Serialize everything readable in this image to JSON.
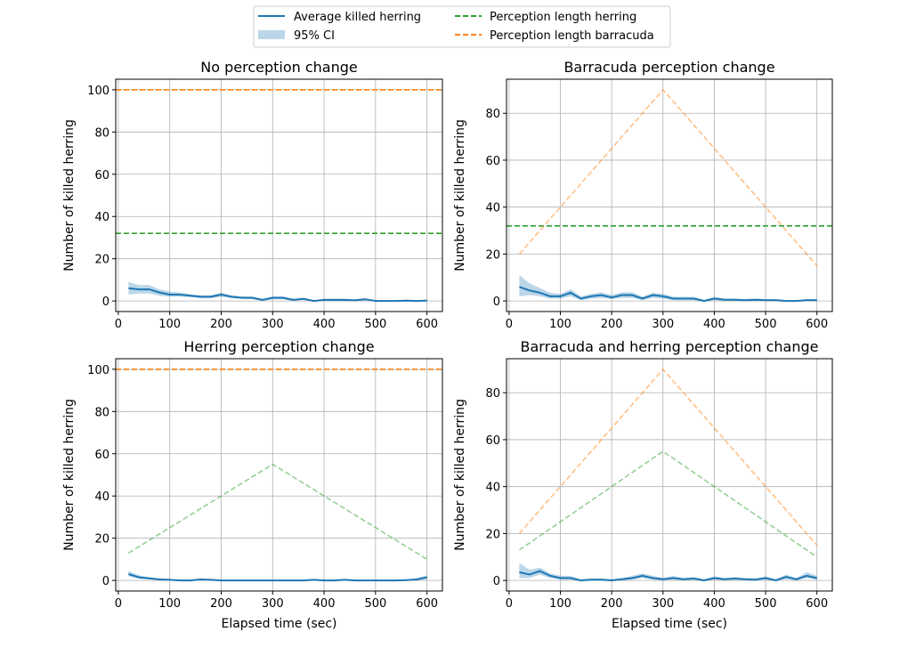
{
  "legend": {
    "items": [
      {
        "label": "Average killed herring",
        "kind": "line",
        "color": "#1f77b4"
      },
      {
        "label": "95% CI",
        "kind": "patch",
        "color": "#1f77b4"
      },
      {
        "label": "Perception length herring",
        "kind": "dashed",
        "color": "#2ca02c"
      },
      {
        "label": "Perception length barracuda",
        "kind": "dashed",
        "color": "#ff7f0e"
      }
    ]
  },
  "chart_data": [
    {
      "type": "line",
      "title": "No perception change",
      "xlabel": "",
      "ylabel": "Number of killed herring",
      "xlim": [
        -5,
        630
      ],
      "ylim": [
        -5,
        105
      ],
      "xticks": [
        0,
        100,
        200,
        300,
        400,
        500,
        600
      ],
      "yticks": [
        0,
        20,
        40,
        60,
        80,
        100
      ],
      "grid": true,
      "x": [
        20,
        40,
        60,
        80,
        100,
        120,
        140,
        160,
        180,
        200,
        220,
        240,
        260,
        280,
        300,
        320,
        340,
        360,
        380,
        400,
        420,
        440,
        460,
        480,
        500,
        520,
        540,
        560,
        580,
        600
      ],
      "series": [
        {
          "name": "Average killed herring",
          "values": [
            6,
            5.5,
            5.5,
            4,
            3,
            3,
            2.5,
            2,
            2,
            3,
            2,
            1.5,
            1.5,
            0.5,
            1.5,
            1.5,
            0.5,
            1,
            0,
            0.5,
            0.5,
            0.5,
            0.3,
            0.8,
            0,
            0,
            0,
            0.2,
            0,
            0.2
          ],
          "ci_low": [
            3,
            3.5,
            3.5,
            2.5,
            2,
            2,
            1.8,
            1.3,
            1.3,
            2,
            1.3,
            1,
            1,
            0,
            0.8,
            0.8,
            0,
            0.5,
            0,
            0,
            0,
            0,
            0,
            0.3,
            0,
            0,
            0,
            0,
            0,
            0
          ],
          "ci_high": [
            9,
            7.5,
            7.5,
            5.5,
            4.5,
            4,
            3.2,
            2.7,
            2.7,
            4,
            2.7,
            2.2,
            2.2,
            1,
            2.2,
            2.2,
            1,
            1.5,
            0.3,
            1,
            1,
            1,
            0.8,
            1.3,
            0.3,
            0.3,
            0.3,
            0.5,
            0.3,
            0.5
          ]
        },
        {
          "name": "Perception length herring",
          "x": [
            -5,
            630
          ],
          "values": [
            32,
            32
          ],
          "style": "dashed",
          "alpha": 1
        },
        {
          "name": "Perception length barracuda",
          "x": [
            -5,
            630
          ],
          "values": [
            100,
            100
          ],
          "style": "dashed",
          "alpha": 1
        }
      ]
    },
    {
      "type": "line",
      "title": "Barracuda perception change",
      "xlabel": "",
      "ylabel": "Number of killed herring",
      "xlim": [
        -5,
        630
      ],
      "ylim": [
        -4.5,
        94.5
      ],
      "xticks": [
        0,
        100,
        200,
        300,
        400,
        500,
        600
      ],
      "yticks": [
        0,
        20,
        40,
        60,
        80
      ],
      "grid": true,
      "x": [
        20,
        40,
        60,
        80,
        100,
        120,
        140,
        160,
        180,
        200,
        220,
        240,
        260,
        280,
        300,
        320,
        340,
        360,
        380,
        400,
        420,
        440,
        460,
        480,
        500,
        520,
        540,
        560,
        580,
        600
      ],
      "series": [
        {
          "name": "Average killed herring",
          "values": [
            6,
            4.5,
            3.5,
            2,
            2,
            3.5,
            1,
            2,
            2.5,
            1.5,
            2.5,
            2.5,
            1,
            2.5,
            2,
            1,
            1,
            1,
            0,
            1,
            0.5,
            0.5,
            0.3,
            0.5,
            0.3,
            0.3,
            0,
            0,
            0.3,
            0.3
          ],
          "ci_low": [
            2,
            2.5,
            2,
            1,
            1,
            2,
            0.3,
            1,
            1.3,
            0.8,
            1.3,
            1.3,
            0.3,
            1.3,
            1,
            0.3,
            0.3,
            0.3,
            0,
            0.3,
            0,
            0,
            0,
            0,
            0,
            0,
            0,
            0,
            0,
            0
          ],
          "ci_high": [
            11,
            7.5,
            5.5,
            3.5,
            3,
            5,
            2,
            3,
            3.7,
            2.5,
            3.7,
            3.7,
            1.8,
            3.5,
            3,
            1.8,
            1.8,
            1.8,
            0.5,
            1.8,
            1,
            1,
            0.8,
            1,
            0.8,
            0.8,
            0.3,
            0.3,
            0.8,
            0.8
          ]
        },
        {
          "name": "Perception length herring",
          "x": [
            -5,
            630
          ],
          "values": [
            32,
            32
          ],
          "style": "dashed",
          "alpha": 1
        },
        {
          "name": "Perception length barracuda",
          "x": [
            20,
            300,
            600
          ],
          "values": [
            20,
            90,
            15
          ],
          "style": "dashed",
          "alpha": 0.5
        }
      ]
    },
    {
      "type": "line",
      "title": "Herring perception change",
      "xlabel": "Elapsed time (sec)",
      "ylabel": "Number of killed herring",
      "xlim": [
        -5,
        630
      ],
      "ylim": [
        -5,
        105
      ],
      "xticks": [
        0,
        100,
        200,
        300,
        400,
        500,
        600
      ],
      "yticks": [
        0,
        20,
        40,
        60,
        80,
        100
      ],
      "grid": true,
      "x": [
        20,
        40,
        60,
        80,
        100,
        120,
        140,
        160,
        180,
        200,
        220,
        240,
        260,
        280,
        300,
        320,
        340,
        360,
        380,
        400,
        420,
        440,
        460,
        480,
        500,
        520,
        540,
        560,
        580,
        600
      ],
      "series": [
        {
          "name": "Average killed herring",
          "values": [
            3,
            1.5,
            1,
            0.5,
            0.3,
            0,
            0,
            0.5,
            0.3,
            0,
            0,
            0,
            0,
            0,
            0,
            0,
            0,
            0,
            0.3,
            0,
            0,
            0.3,
            0,
            0,
            0,
            0,
            0,
            0.2,
            0.5,
            1.5
          ],
          "ci_low": [
            2,
            0.8,
            0.5,
            0.2,
            0,
            0,
            0,
            0.2,
            0,
            0,
            0,
            0,
            0,
            0,
            0,
            0,
            0,
            0,
            0,
            0,
            0,
            0,
            0,
            0,
            0,
            0,
            0,
            0,
            0.2,
            0.5
          ],
          "ci_high": [
            4.5,
            2.5,
            1.5,
            1,
            0.6,
            0.3,
            0.3,
            1,
            0.6,
            0.3,
            0.3,
            0.3,
            0.3,
            0.3,
            0.3,
            0.3,
            0.3,
            0.3,
            0.6,
            0.3,
            0.3,
            0.6,
            0.3,
            0.3,
            0.3,
            0.3,
            0.3,
            0.5,
            1,
            2.5
          ]
        },
        {
          "name": "Perception length herring",
          "x": [
            20,
            300,
            600
          ],
          "values": [
            13,
            55,
            10
          ],
          "style": "dashed",
          "alpha": 0.5
        },
        {
          "name": "Perception length barracuda",
          "x": [
            -5,
            630
          ],
          "values": [
            100,
            100
          ],
          "style": "dashed",
          "alpha": 1
        }
      ]
    },
    {
      "type": "line",
      "title": "Barracuda and herring perception change",
      "xlabel": "Elapsed time (sec)",
      "ylabel": "Number of killed herring",
      "xlim": [
        -5,
        630
      ],
      "ylim": [
        -4.5,
        94.5
      ],
      "xticks": [
        0,
        100,
        200,
        300,
        400,
        500,
        600
      ],
      "yticks": [
        0,
        20,
        40,
        60,
        80
      ],
      "grid": true,
      "x": [
        20,
        40,
        60,
        80,
        100,
        120,
        140,
        160,
        180,
        200,
        220,
        240,
        260,
        280,
        300,
        320,
        340,
        360,
        380,
        400,
        420,
        440,
        460,
        480,
        500,
        520,
        540,
        560,
        580,
        600
      ],
      "series": [
        {
          "name": "Average killed herring",
          "values": [
            3.5,
            2.5,
            4,
            2,
            1,
            1,
            0,
            0.3,
            0.3,
            0,
            0.5,
            1,
            2,
            1,
            0.5,
            1,
            0.5,
            0.8,
            0,
            1,
            0.5,
            0.8,
            0.5,
            0.3,
            1,
            0,
            1.5,
            0.5,
            2,
            1
          ],
          "ci_low": [
            1,
            1,
            2.5,
            1,
            0.3,
            0.3,
            0,
            0,
            0,
            0,
            0,
            0.3,
            1,
            0.3,
            0,
            0.3,
            0,
            0.3,
            0,
            0.3,
            0,
            0.3,
            0,
            0,
            0.3,
            0,
            0.5,
            0,
            1,
            0.3
          ],
          "ci_high": [
            7.5,
            4.5,
            5.5,
            3,
            2,
            2,
            0.5,
            0.8,
            0.8,
            0.5,
            1,
            2,
            3,
            2,
            1,
            2,
            1,
            1.5,
            0.5,
            1.8,
            1,
            1.5,
            1,
            0.8,
            1.8,
            0.5,
            2.5,
            1,
            3.5,
            2
          ]
        },
        {
          "name": "Perception length herring",
          "x": [
            20,
            300,
            600
          ],
          "values": [
            13,
            55,
            10
          ],
          "style": "dashed",
          "alpha": 0.5
        },
        {
          "name": "Perception length barracuda",
          "x": [
            20,
            300,
            600
          ],
          "values": [
            20,
            90,
            15
          ],
          "style": "dashed",
          "alpha": 0.5
        }
      ]
    }
  ]
}
